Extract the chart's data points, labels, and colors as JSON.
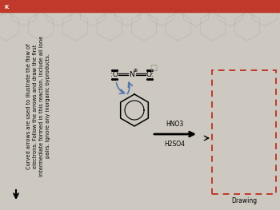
{
  "bg_color": "#cdc8c0",
  "red_bar_color": "#c0392b",
  "text_block": "Curved arrows are used to illustrate the flow of\nelectrons. Follow the arrows and draw the first\nintermediate formed in this reaction. Include all lone\npairs. Ignore any inorganic byproducts.",
  "reagent1": "HNO3",
  "reagent2": "H2SO4",
  "drawing_label": "Drawing",
  "dashed_box_color": "#c0392b",
  "curved_arrow_color": "#5577aa",
  "hex_tile_color": "#b8b2aa",
  "small_checkbox_color": "#888888"
}
